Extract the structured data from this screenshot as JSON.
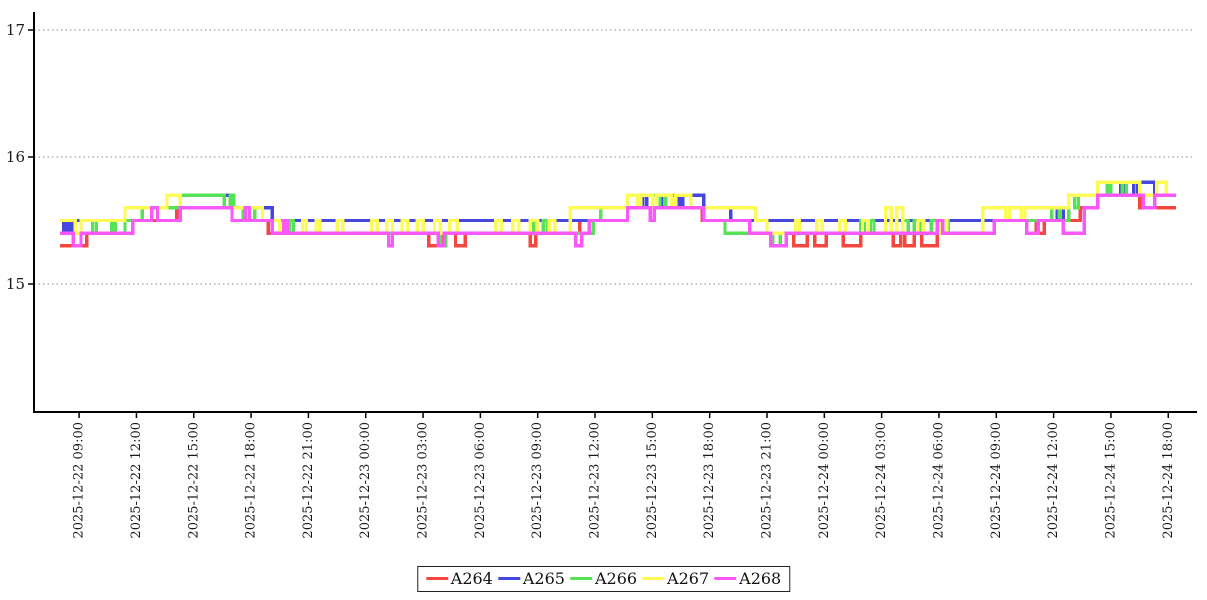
{
  "chart_data": {
    "type": "line",
    "subtype": "step-after",
    "title": "",
    "xlabel": "",
    "ylabel": "",
    "grid": "horizontal-dotted",
    "legend_position": "bottom-center",
    "x_unit": "hours offset; 0 = 2025-12-22 08:00",
    "x_domain": [
      0,
      58.4
    ],
    "ylim": [
      14.0,
      17.15
    ],
    "y_ticks": [
      {
        "value": 15,
        "label": "15"
      },
      {
        "value": 16,
        "label": "16"
      },
      {
        "value": 17,
        "label": "17"
      }
    ],
    "x_ticks": [
      {
        "t": 1,
        "label": "2025-12-22  09:00"
      },
      {
        "t": 4,
        "label": "2025-12-22  12:00"
      },
      {
        "t": 7,
        "label": "2025-12-22  15:00"
      },
      {
        "t": 10,
        "label": "2025-12-22  18:00"
      },
      {
        "t": 13,
        "label": "2025-12-22  21:00"
      },
      {
        "t": 16,
        "label": "2025-12-23  00:00"
      },
      {
        "t": 19,
        "label": "2025-12-23  03:00"
      },
      {
        "t": 22,
        "label": "2025-12-23  06:00"
      },
      {
        "t": 25,
        "label": "2025-12-23  09:00"
      },
      {
        "t": 28,
        "label": "2025-12-23  12:00"
      },
      {
        "t": 31,
        "label": "2025-12-23  15:00"
      },
      {
        "t": 34,
        "label": "2025-12-23  18:00"
      },
      {
        "t": 37,
        "label": "2025-12-23  21:00"
      },
      {
        "t": 40,
        "label": "2025-12-24  00:00"
      },
      {
        "t": 43,
        "label": "2025-12-24  03:00"
      },
      {
        "t": 46,
        "label": "2025-12-24  06:00"
      },
      {
        "t": 49,
        "label": "2025-12-24  09:00"
      },
      {
        "t": 52,
        "label": "2025-12-24  12:00"
      },
      {
        "t": 55,
        "label": "2025-12-24  15:00"
      },
      {
        "t": 58,
        "label": "2025-12-24  18:00"
      }
    ],
    "series": [
      {
        "name": "A264",
        "color": "#f6473f",
        "points": [
          [
            0,
            15.3
          ],
          [
            1.4,
            15.4
          ],
          [
            3.8,
            15.5
          ],
          [
            6.1,
            15.6
          ],
          [
            9.0,
            15.5
          ],
          [
            10.9,
            15.4
          ],
          [
            19.3,
            15.3
          ],
          [
            20.0,
            15.4
          ],
          [
            20.7,
            15.3
          ],
          [
            21.2,
            15.4
          ],
          [
            24.6,
            15.3
          ],
          [
            24.9,
            15.4
          ],
          [
            27.2,
            15.5
          ],
          [
            29.7,
            15.6
          ],
          [
            33.6,
            15.5
          ],
          [
            36.1,
            15.4
          ],
          [
            38.4,
            15.3
          ],
          [
            39.1,
            15.4
          ],
          [
            39.5,
            15.3
          ],
          [
            40.1,
            15.4
          ],
          [
            41.0,
            15.3
          ],
          [
            41.9,
            15.4
          ],
          [
            43.6,
            15.3
          ],
          [
            44.0,
            15.4
          ],
          [
            44.2,
            15.3
          ],
          [
            44.7,
            15.4
          ],
          [
            45.1,
            15.3
          ],
          [
            45.9,
            15.4
          ],
          [
            48.9,
            15.5
          ],
          [
            51.1,
            15.4
          ],
          [
            51.5,
            15.5
          ],
          [
            53.4,
            15.6
          ],
          [
            54.3,
            15.7
          ],
          [
            56.5,
            15.6
          ]
        ]
      },
      {
        "name": "A265",
        "color": "#4547dd",
        "points": [
          [
            0,
            15.5
          ],
          [
            0.2,
            15.4
          ],
          [
            0.35,
            15.5
          ],
          [
            0.5,
            15.4
          ],
          [
            0.65,
            15.5
          ],
          [
            4.3,
            15.6
          ],
          [
            6.3,
            15.7
          ],
          [
            9.0,
            15.6
          ],
          [
            11.1,
            15.5
          ],
          [
            28.3,
            15.6
          ],
          [
            29.7,
            15.7
          ],
          [
            30.5,
            15.6
          ],
          [
            30.7,
            15.7
          ],
          [
            31.5,
            15.6
          ],
          [
            31.7,
            15.7
          ],
          [
            32.4,
            15.6
          ],
          [
            32.6,
            15.7
          ],
          [
            33.7,
            15.6
          ],
          [
            35.1,
            15.5
          ],
          [
            51.9,
            15.6
          ],
          [
            52.2,
            15.5
          ],
          [
            52.5,
            15.6
          ],
          [
            52.8,
            15.7
          ],
          [
            54.3,
            15.8
          ],
          [
            55.5,
            15.7
          ],
          [
            55.7,
            15.8
          ],
          [
            56.2,
            15.7
          ],
          [
            56.4,
            15.8
          ],
          [
            57.3,
            15.7
          ]
        ]
      },
      {
        "name": "A266",
        "color": "#55e257",
        "points": [
          [
            0,
            15.4
          ],
          [
            1.7,
            15.5
          ],
          [
            1.9,
            15.4
          ],
          [
            2.7,
            15.5
          ],
          [
            2.9,
            15.4
          ],
          [
            3.4,
            15.5
          ],
          [
            4.3,
            15.6
          ],
          [
            6.3,
            15.7
          ],
          [
            8.6,
            15.6
          ],
          [
            8.9,
            15.7
          ],
          [
            9.1,
            15.6
          ],
          [
            9.6,
            15.5
          ],
          [
            9.9,
            15.6
          ],
          [
            10.2,
            15.5
          ],
          [
            11.1,
            15.4
          ],
          [
            12.0,
            15.5
          ],
          [
            12.2,
            15.4
          ],
          [
            19.9,
            15.3
          ],
          [
            20.2,
            15.4
          ],
          [
            24.8,
            15.5
          ],
          [
            25.0,
            15.4
          ],
          [
            25.3,
            15.5
          ],
          [
            25.5,
            15.4
          ],
          [
            27.9,
            15.5
          ],
          [
            28.3,
            15.6
          ],
          [
            29.7,
            15.7
          ],
          [
            31.2,
            15.6
          ],
          [
            31.4,
            15.7
          ],
          [
            31.7,
            15.6
          ],
          [
            33.7,
            15.5
          ],
          [
            34.8,
            15.4
          ],
          [
            37.3,
            15.3
          ],
          [
            37.7,
            15.4
          ],
          [
            41.9,
            15.5
          ],
          [
            42.1,
            15.4
          ],
          [
            42.4,
            15.5
          ],
          [
            42.6,
            15.4
          ],
          [
            44.1,
            15.5
          ],
          [
            44.4,
            15.4
          ],
          [
            44.7,
            15.5
          ],
          [
            45.0,
            15.4
          ],
          [
            45.6,
            15.5
          ],
          [
            45.9,
            15.4
          ],
          [
            46.2,
            15.5
          ],
          [
            46.5,
            15.4
          ],
          [
            48.9,
            15.5
          ],
          [
            51.9,
            15.6
          ],
          [
            52.3,
            15.5
          ],
          [
            52.8,
            15.7
          ],
          [
            53.1,
            15.6
          ],
          [
            53.3,
            15.7
          ],
          [
            54.3,
            15.8
          ],
          [
            54.8,
            15.7
          ],
          [
            55.0,
            15.8
          ],
          [
            55.6,
            15.7
          ],
          [
            55.8,
            15.8
          ],
          [
            56.5,
            15.7
          ]
        ]
      },
      {
        "name": "A267",
        "color": "#fcfc55",
        "points": [
          [
            0,
            15.5
          ],
          [
            0.8,
            15.4
          ],
          [
            1.1,
            15.5
          ],
          [
            3.4,
            15.6
          ],
          [
            5.6,
            15.7
          ],
          [
            6.3,
            15.6
          ],
          [
            10.6,
            15.5
          ],
          [
            11.5,
            15.4
          ],
          [
            12.7,
            15.5
          ],
          [
            12.9,
            15.4
          ],
          [
            13.4,
            15.5
          ],
          [
            13.6,
            15.4
          ],
          [
            14.5,
            15.5
          ],
          [
            14.8,
            15.4
          ],
          [
            16.3,
            15.5
          ],
          [
            16.6,
            15.4
          ],
          [
            17.1,
            15.5
          ],
          [
            17.4,
            15.4
          ],
          [
            17.9,
            15.5
          ],
          [
            18.2,
            15.4
          ],
          [
            18.7,
            15.5
          ],
          [
            19.0,
            15.4
          ],
          [
            19.6,
            15.5
          ],
          [
            19.9,
            15.4
          ],
          [
            20.4,
            15.5
          ],
          [
            20.8,
            15.4
          ],
          [
            22.8,
            15.5
          ],
          [
            23.1,
            15.4
          ],
          [
            23.7,
            15.5
          ],
          [
            24.0,
            15.4
          ],
          [
            24.6,
            15.5
          ],
          [
            25.0,
            15.4
          ],
          [
            25.6,
            15.5
          ],
          [
            25.9,
            15.4
          ],
          [
            26.7,
            15.6
          ],
          [
            29.7,
            15.7
          ],
          [
            30.2,
            15.6
          ],
          [
            30.4,
            15.7
          ],
          [
            31.0,
            15.6
          ],
          [
            31.2,
            15.7
          ],
          [
            32.0,
            15.6
          ],
          [
            32.2,
            15.7
          ],
          [
            33.0,
            15.6
          ],
          [
            36.4,
            15.5
          ],
          [
            37.0,
            15.4
          ],
          [
            38.5,
            15.5
          ],
          [
            38.7,
            15.4
          ],
          [
            39.6,
            15.5
          ],
          [
            39.9,
            15.4
          ],
          [
            40.8,
            15.5
          ],
          [
            41.1,
            15.4
          ],
          [
            42.0,
            15.5
          ],
          [
            42.3,
            15.4
          ],
          [
            43.2,
            15.6
          ],
          [
            43.5,
            15.4
          ],
          [
            43.8,
            15.6
          ],
          [
            44.1,
            15.4
          ],
          [
            44.9,
            15.5
          ],
          [
            45.2,
            15.4
          ],
          [
            46.1,
            15.5
          ],
          [
            46.4,
            15.4
          ],
          [
            48.3,
            15.6
          ],
          [
            49.5,
            15.5
          ],
          [
            49.7,
            15.6
          ],
          [
            50.3,
            15.5
          ],
          [
            50.5,
            15.6
          ],
          [
            52.8,
            15.7
          ],
          [
            54.3,
            15.8
          ],
          [
            56.5,
            15.7
          ],
          [
            57.4,
            15.8
          ],
          [
            57.9,
            15.7
          ]
        ]
      },
      {
        "name": "A268",
        "color": "#fa58fa",
        "points": [
          [
            0,
            15.4
          ],
          [
            0.7,
            15.3
          ],
          [
            1.1,
            15.4
          ],
          [
            3.8,
            15.5
          ],
          [
            4.8,
            15.6
          ],
          [
            5.1,
            15.5
          ],
          [
            6.3,
            15.6
          ],
          [
            9.0,
            15.5
          ],
          [
            9.7,
            15.6
          ],
          [
            9.9,
            15.5
          ],
          [
            11.1,
            15.4
          ],
          [
            11.7,
            15.5
          ],
          [
            11.9,
            15.4
          ],
          [
            17.2,
            15.3
          ],
          [
            17.4,
            15.4
          ],
          [
            19.8,
            15.3
          ],
          [
            20.1,
            15.4
          ],
          [
            27.0,
            15.3
          ],
          [
            27.3,
            15.4
          ],
          [
            27.7,
            15.5
          ],
          [
            29.7,
            15.6
          ],
          [
            30.9,
            15.5
          ],
          [
            31.1,
            15.6
          ],
          [
            33.7,
            15.5
          ],
          [
            36.1,
            15.4
          ],
          [
            37.2,
            15.3
          ],
          [
            38.0,
            15.4
          ],
          [
            45.9,
            15.5
          ],
          [
            46.2,
            15.4
          ],
          [
            48.9,
            15.5
          ],
          [
            50.6,
            15.4
          ],
          [
            51.2,
            15.5
          ],
          [
            52.5,
            15.4
          ],
          [
            53.6,
            15.6
          ],
          [
            54.3,
            15.7
          ],
          [
            56.7,
            15.6
          ],
          [
            57.3,
            15.7
          ]
        ]
      }
    ]
  },
  "legend": {
    "labels": [
      "A264",
      "A265",
      "A266",
      "A267",
      "A268"
    ]
  },
  "style": {
    "grid_color": "#888888",
    "axis_color": "#000000",
    "tick_label_color": "#1a1a1a",
    "legend_border_color": "#222222",
    "background": "#ffffff"
  }
}
